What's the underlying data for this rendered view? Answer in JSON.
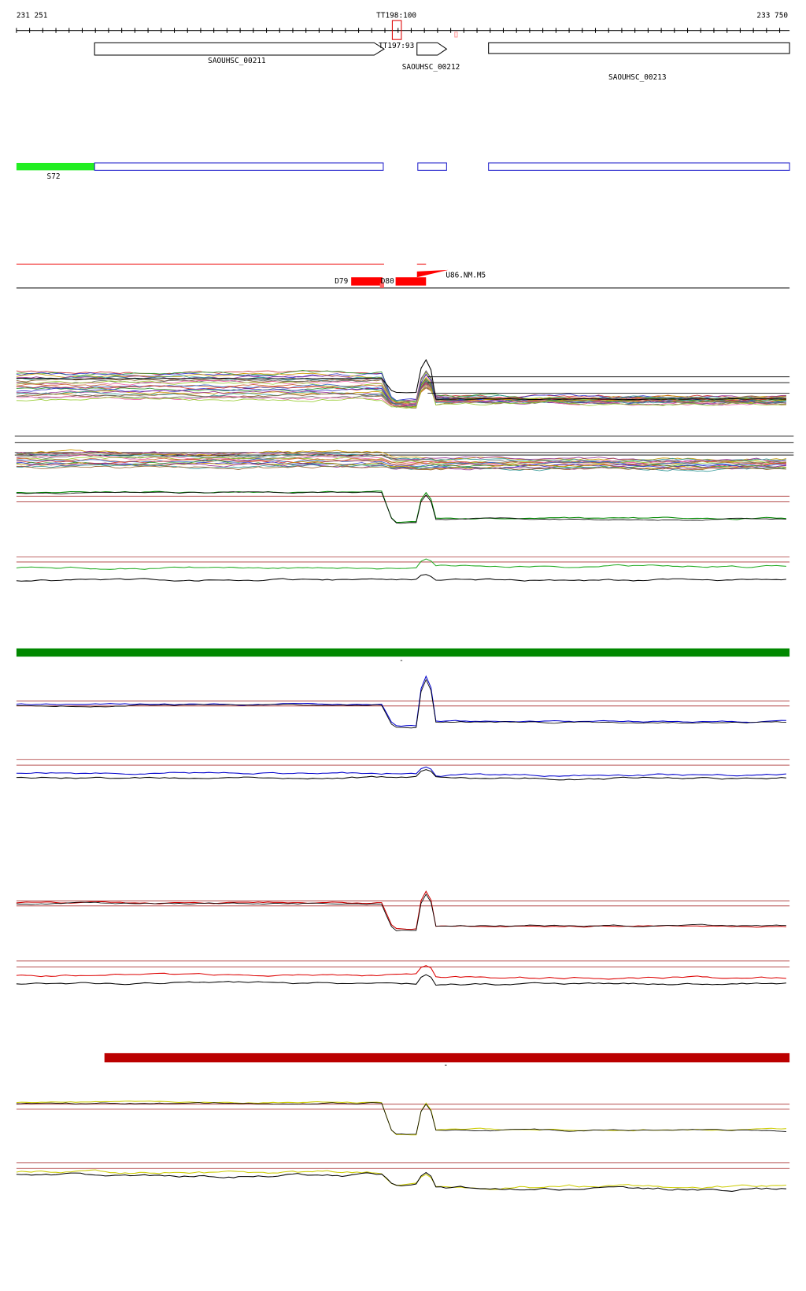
{
  "ruler": {
    "start": "231 251",
    "end": "233 750",
    "marker": "TT198:100"
  },
  "terminator": "TT197:93",
  "genes": [
    "SAOUHSC_00211",
    "SAOUHSC_00212",
    "SAOUHSC_00213"
  ],
  "segment": "S72",
  "features": [
    "D79",
    "D80",
    "U86.NM.M5"
  ],
  "bar_labels": [
    "-",
    "-"
  ]
}
